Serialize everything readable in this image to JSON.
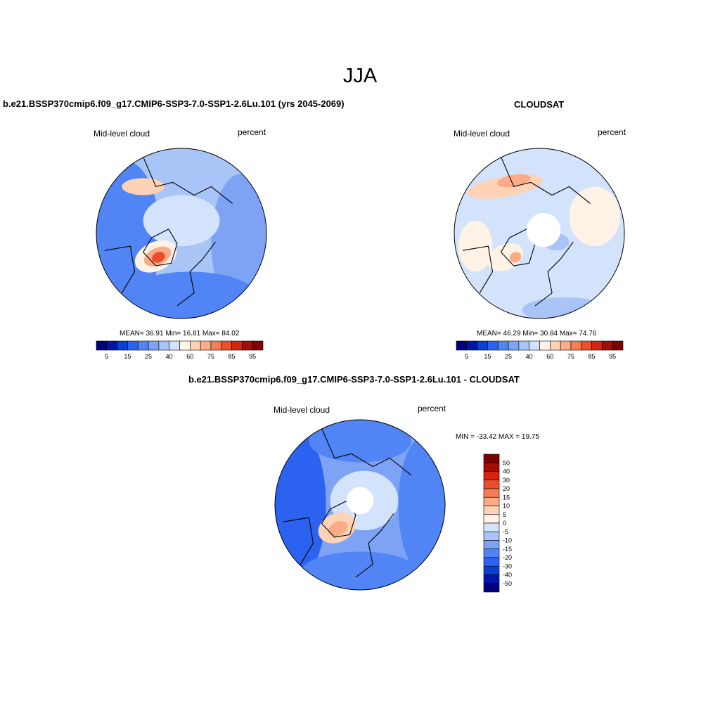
{
  "season": "JJA",
  "colors": {
    "seq": [
      "#00007f",
      "#0014a8",
      "#0a3fd6",
      "#2c62f0",
      "#5184f4",
      "#7ea3f5",
      "#a9c4f7",
      "#d2e3fb",
      "#fff2e6",
      "#fdd2b5",
      "#fbab88",
      "#f67c57",
      "#ec4e2c",
      "#d42411",
      "#a50d08",
      "#7f0000"
    ],
    "diff": [
      "#00007f",
      "#0014a8",
      "#0a3fd6",
      "#2c62f0",
      "#5184f4",
      "#7ea3f5",
      "#a9c4f7",
      "#d2e3fb",
      "#fff2e6",
      "#fdd2b5",
      "#fbab88",
      "#f67c57",
      "#ec4e2c",
      "#d42411",
      "#a50d08",
      "#7f0000"
    ]
  },
  "panels": [
    {
      "title": "b.e21.BSSP370cmip6.f09_g17.CMIP6-SSP3-7.0-SSP1-2.6Lu.101 (yrs 2045-2069)",
      "left_label": "Mid-level cloud",
      "right_label": "percent",
      "stats": "MEAN=  36.91  Min=  16.81  Max=  84.02",
      "colorbar_ticks": [
        "5",
        "15",
        "25",
        "40",
        "60",
        "75",
        "85",
        "95"
      ]
    },
    {
      "title": "CLOUDSAT",
      "left_label": "Mid-level cloud",
      "right_label": "percent",
      "stats": "MEAN=  46.29  Min=  30.84  Max=  74.76",
      "colorbar_ticks": [
        "5",
        "15",
        "25",
        "40",
        "60",
        "75",
        "85",
        "95"
      ]
    },
    {
      "title": "b.e21.BSSP370cmip6.f09_g17.CMIP6-SSP3-7.0-SSP1-2.6Lu.101 - CLOUDSAT",
      "left_label": "Mid-level cloud",
      "right_label": "percent",
      "stats": "MIN = -33.42 MAX =  19.75",
      "colorbar_ticks": [
        "50",
        "40",
        "30",
        "20",
        "15",
        "10",
        "5",
        "0",
        "-5",
        "-10",
        "-15",
        "-20",
        "-30",
        "-40",
        "-50"
      ]
    }
  ],
  "chart_data": [
    {
      "type": "heatmap",
      "title": "b.e21.BSSP370cmip6.f09_g17.CMIP6-SSP3-7.0-SSP1-2.6Lu.101 (yrs 2045-2069)",
      "variable": "Mid-level cloud",
      "units": "percent",
      "projection": "north polar stereographic",
      "mean": 36.91,
      "min": 16.81,
      "max": 84.02,
      "levels": [
        5,
        10,
        15,
        20,
        25,
        30,
        40,
        50,
        60,
        65,
        75,
        80,
        85,
        90,
        95
      ]
    },
    {
      "type": "heatmap",
      "title": "CLOUDSAT",
      "variable": "Mid-level cloud",
      "units": "percent",
      "projection": "north polar stereographic",
      "mean": 46.29,
      "min": 30.84,
      "max": 74.76,
      "levels": [
        5,
        10,
        15,
        20,
        25,
        30,
        40,
        50,
        60,
        65,
        75,
        80,
        85,
        90,
        95
      ]
    },
    {
      "type": "heatmap",
      "title": "b.e21.BSSP370cmip6.f09_g17.CMIP6-SSP3-7.0-SSP1-2.6Lu.101 - CLOUDSAT",
      "variable": "Mid-level cloud",
      "units": "percent",
      "projection": "north polar stereographic",
      "min": -33.42,
      "max": 19.75,
      "levels": [
        -50,
        -40,
        -30,
        -20,
        -15,
        -10,
        -5,
        0,
        5,
        10,
        15,
        20,
        30,
        40,
        50
      ]
    }
  ]
}
